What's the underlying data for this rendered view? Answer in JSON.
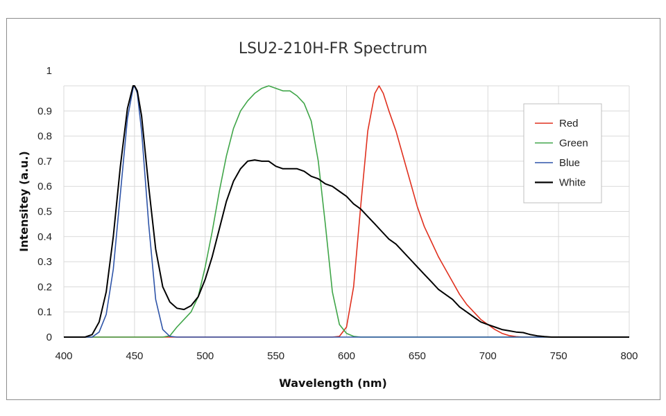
{
  "chart_data": {
    "type": "line",
    "title": "LSU2-210H-FR Spectrum",
    "xlabel": "Wavelength (nm)",
    "ylabel": "Intensitey (a.u.)",
    "xlim": [
      400,
      800
    ],
    "ylim": [
      0,
      1
    ],
    "x_ticks": [
      "400",
      "450",
      "500",
      "550",
      "600",
      "650",
      "700",
      "750",
      "800"
    ],
    "y_ticks": [
      "0",
      "0.1",
      "0.2",
      "0.3",
      "0.4",
      "0.5",
      "0.6",
      "0.7",
      "0.8",
      "0.9",
      "1"
    ],
    "grid": true,
    "legend_position": "top-right",
    "series": [
      {
        "name": "Red",
        "color": "#e0301e",
        "x": [
          400,
          590,
          595,
          600,
          605,
          610,
          615,
          620,
          623,
          626,
          630,
          635,
          640,
          645,
          650,
          655,
          660,
          665,
          670,
          675,
          680,
          685,
          690,
          695,
          700,
          705,
          710,
          715,
          720,
          725,
          800
        ],
        "y": [
          0,
          0,
          0.003,
          0.04,
          0.2,
          0.52,
          0.82,
          0.97,
          1.0,
          0.97,
          0.9,
          0.82,
          0.72,
          0.62,
          0.52,
          0.44,
          0.38,
          0.32,
          0.27,
          0.22,
          0.17,
          0.13,
          0.1,
          0.07,
          0.05,
          0.03,
          0.015,
          0.006,
          0.002,
          0,
          0
        ]
      },
      {
        "name": "Green",
        "color": "#3fa548",
        "x": [
          400,
          470,
          475,
          480,
          485,
          490,
          495,
          500,
          505,
          510,
          515,
          520,
          525,
          530,
          535,
          540,
          545,
          550,
          555,
          560,
          565,
          570,
          575,
          580,
          585,
          590,
          595,
          600,
          605,
          610,
          800
        ],
        "y": [
          0,
          0,
          0.005,
          0.04,
          0.07,
          0.1,
          0.16,
          0.28,
          0.42,
          0.58,
          0.72,
          0.83,
          0.9,
          0.94,
          0.97,
          0.99,
          1.0,
          0.99,
          0.98,
          0.98,
          0.96,
          0.93,
          0.86,
          0.7,
          0.45,
          0.18,
          0.05,
          0.015,
          0.003,
          0,
          0
        ]
      },
      {
        "name": "Blue",
        "color": "#2e54a8",
        "x": [
          400,
          420,
          425,
          430,
          435,
          440,
          445,
          449,
          450,
          452,
          455,
          460,
          465,
          470,
          475,
          480,
          800
        ],
        "y": [
          0,
          0,
          0.02,
          0.09,
          0.27,
          0.57,
          0.87,
          0.99,
          1.0,
          0.97,
          0.82,
          0.45,
          0.15,
          0.03,
          0.003,
          0,
          0
        ]
      },
      {
        "name": "White",
        "color": "#000000",
        "x": [
          400,
          415,
          420,
          425,
          430,
          435,
          440,
          445,
          449,
          450,
          452,
          455,
          460,
          465,
          470,
          475,
          480,
          485,
          490,
          495,
          500,
          505,
          510,
          515,
          520,
          525,
          530,
          535,
          540,
          545,
          550,
          555,
          560,
          565,
          570,
          575,
          580,
          585,
          590,
          595,
          600,
          605,
          610,
          615,
          620,
          625,
          630,
          635,
          640,
          645,
          650,
          655,
          660,
          665,
          670,
          675,
          680,
          685,
          690,
          695,
          700,
          705,
          710,
          715,
          720,
          725,
          730,
          735,
          740,
          745,
          800
        ],
        "y": [
          0,
          0,
          0.01,
          0.06,
          0.18,
          0.4,
          0.68,
          0.91,
          1.0,
          1.0,
          0.98,
          0.88,
          0.6,
          0.35,
          0.2,
          0.14,
          0.115,
          0.11,
          0.125,
          0.16,
          0.23,
          0.32,
          0.43,
          0.54,
          0.62,
          0.67,
          0.7,
          0.705,
          0.7,
          0.7,
          0.68,
          0.67,
          0.67,
          0.67,
          0.66,
          0.64,
          0.63,
          0.61,
          0.6,
          0.58,
          0.56,
          0.53,
          0.51,
          0.48,
          0.45,
          0.42,
          0.39,
          0.37,
          0.34,
          0.31,
          0.28,
          0.25,
          0.22,
          0.19,
          0.17,
          0.15,
          0.12,
          0.1,
          0.08,
          0.06,
          0.05,
          0.04,
          0.03,
          0.025,
          0.02,
          0.018,
          0.01,
          0.005,
          0.002,
          0,
          0
        ]
      }
    ]
  }
}
